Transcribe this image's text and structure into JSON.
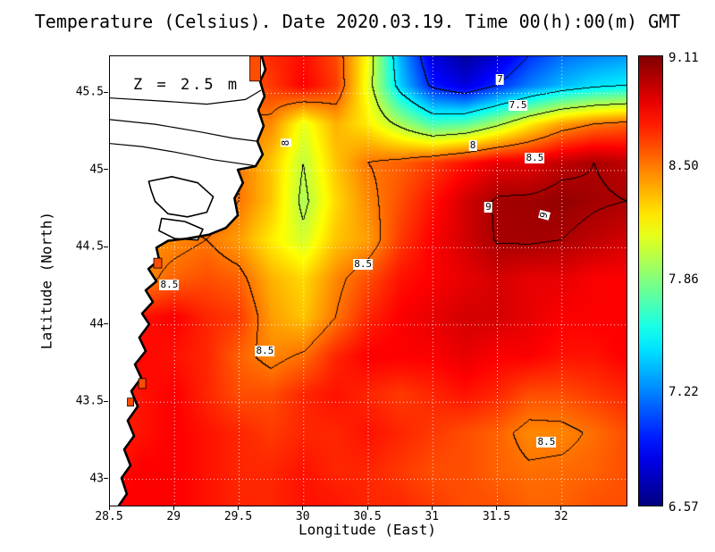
{
  "title": "Temperature (Celsius). Date 2020.03.19. Time 00(h):00(m) GMT",
  "annotation": "Z = 2.5 m",
  "axes": {
    "x_label": "Longitude (East)",
    "y_label": "Latitude (North)",
    "x_ticks": [
      {
        "value": 28.5,
        "label": "28.5"
      },
      {
        "value": 29,
        "label": "29"
      },
      {
        "value": 29.5,
        "label": "29.5"
      },
      {
        "value": 30,
        "label": "30"
      },
      {
        "value": 30.5,
        "label": "30.5"
      },
      {
        "value": 31,
        "label": "31"
      },
      {
        "value": 31.5,
        "label": "31.5"
      },
      {
        "value": 32,
        "label": "32"
      }
    ],
    "y_ticks": [
      {
        "value": 43,
        "label": "43"
      },
      {
        "value": 43.5,
        "label": "43.5"
      },
      {
        "value": 44,
        "label": "44"
      },
      {
        "value": 44.5,
        "label": "44.5"
      },
      {
        "value": 45,
        "label": "45"
      },
      {
        "value": 45.5,
        "label": "45.5"
      }
    ]
  },
  "colorbar": {
    "tick_labels": [
      "9.11",
      "8.50",
      "7.86",
      "7.22",
      "6.57"
    ],
    "tick_values": [
      9.11,
      8.5,
      7.86,
      7.22,
      6.57
    ],
    "min": 6.57,
    "max": 9.11
  },
  "colors": {
    "background": "#ffffff",
    "frame": "#000000",
    "land_fill": "#ffffff",
    "grid_line": "#ffffff",
    "inlet_fill": "#ff4d00"
  },
  "contour_labels": [
    {
      "text": "7",
      "lon": 31.52,
      "lat": 45.59,
      "rot": 0
    },
    {
      "text": "7.5",
      "lon": 31.66,
      "lat": 45.42,
      "rot": 0
    },
    {
      "text": "8",
      "lon": 29.86,
      "lat": 45.18,
      "rot": -90
    },
    {
      "text": "8",
      "lon": 31.31,
      "lat": 45.16,
      "rot": 0
    },
    {
      "text": "8.5",
      "lon": 31.79,
      "lat": 45.08,
      "rot": 0
    },
    {
      "text": "9",
      "lon": 31.43,
      "lat": 44.76,
      "rot": 0
    },
    {
      "text": "9",
      "lon": 31.86,
      "lat": 44.71,
      "rot": -75
    },
    {
      "text": "8.5",
      "lon": 28.96,
      "lat": 44.26,
      "rot": 0
    },
    {
      "text": "8.5",
      "lon": 30.46,
      "lat": 44.39,
      "rot": 0
    },
    {
      "text": "8.5",
      "lon": 29.7,
      "lat": 43.83,
      "rot": 0
    },
    {
      "text": "8.5",
      "lon": 31.88,
      "lat": 43.24,
      "rot": 0
    }
  ],
  "chart_data": {
    "type": "heatmap",
    "title": "Temperature (Celsius). Date 2020.03.19. Time 00(h):00(m) GMT",
    "variable": "Temperature",
    "units": "Celsius",
    "date": "2020.03.19",
    "time": "00(h):00(m) GMT",
    "depth": "2.5 m",
    "xlabel": "Longitude (East)",
    "ylabel": "Latitude (North)",
    "colormap": "jet",
    "vmin": 6.57,
    "vmax": 9.11,
    "contour_levels": [
      7,
      7.5,
      8,
      8.5,
      9
    ],
    "lon_range": [
      28.5,
      32.5
    ],
    "lat_range": [
      42.83,
      45.74
    ],
    "grid": {
      "lon": [
        28.5,
        28.75,
        29.0,
        29.25,
        29.5,
        29.75,
        30.0,
        30.25,
        30.5,
        30.75,
        31.0,
        31.25,
        31.5,
        31.75,
        32.0,
        32.25,
        32.5
      ],
      "lat": [
        45.8,
        45.55,
        45.3,
        45.05,
        44.8,
        44.55,
        44.3,
        44.05,
        43.8,
        43.55,
        43.3,
        43.05,
        42.8
      ],
      "values": [
        [
          8.5,
          8.5,
          8.5,
          8.5,
          8.6,
          8.7,
          8.75,
          8.6,
          8.15,
          7.3,
          6.75,
          6.6,
          6.7,
          6.95,
          7.1,
          7.15,
          7.2
        ],
        [
          8.5,
          8.5,
          8.5,
          8.5,
          8.55,
          8.65,
          8.8,
          8.65,
          8.1,
          7.4,
          6.95,
          6.8,
          7.0,
          7.2,
          7.35,
          7.45,
          7.5
        ],
        [
          8.5,
          8.5,
          8.5,
          8.5,
          8.5,
          8.45,
          8.1,
          8.35,
          8.2,
          7.95,
          7.7,
          7.75,
          7.95,
          8.2,
          8.4,
          8.5,
          8.55
        ],
        [
          8.5,
          8.5,
          8.5,
          8.55,
          8.5,
          8.3,
          8.0,
          8.3,
          8.5,
          8.55,
          8.65,
          8.75,
          8.85,
          8.85,
          8.95,
          9.0,
          8.95
        ],
        [
          8.5,
          8.55,
          8.6,
          8.6,
          8.5,
          8.3,
          7.95,
          8.25,
          8.45,
          8.6,
          8.75,
          8.9,
          9.02,
          9.03,
          9.06,
          9.02,
          9.0
        ],
        [
          8.4,
          8.42,
          8.45,
          8.5,
          8.4,
          8.2,
          8.05,
          8.3,
          8.4,
          8.65,
          8.8,
          8.9,
          9.01,
          9.02,
          9.0,
          8.95,
          8.9
        ],
        [
          8.45,
          8.45,
          8.55,
          8.6,
          8.55,
          8.35,
          8.25,
          8.45,
          8.6,
          8.75,
          8.8,
          8.85,
          8.9,
          8.85,
          8.85,
          8.8,
          8.8
        ],
        [
          8.7,
          8.75,
          8.8,
          8.7,
          8.65,
          8.4,
          8.3,
          8.5,
          8.7,
          8.8,
          8.85,
          8.9,
          8.9,
          8.85,
          8.8,
          8.8,
          8.8
        ],
        [
          8.75,
          8.78,
          8.75,
          8.7,
          8.55,
          8.45,
          8.52,
          8.7,
          8.8,
          8.8,
          8.8,
          8.85,
          8.8,
          8.8,
          8.75,
          8.75,
          8.8
        ],
        [
          8.7,
          8.75,
          8.8,
          8.7,
          8.6,
          8.6,
          8.7,
          8.75,
          8.7,
          8.65,
          8.7,
          8.75,
          8.7,
          8.6,
          8.6,
          8.65,
          8.7
        ],
        [
          8.7,
          8.75,
          8.8,
          8.75,
          8.7,
          8.65,
          8.7,
          8.7,
          8.75,
          8.7,
          8.65,
          8.6,
          8.55,
          8.45,
          8.46,
          8.52,
          8.6
        ],
        [
          8.75,
          8.8,
          8.8,
          8.75,
          8.7,
          8.7,
          8.75,
          8.7,
          8.7,
          8.65,
          8.6,
          8.6,
          8.55,
          8.52,
          8.53,
          8.55,
          8.6
        ],
        [
          8.8,
          8.8,
          8.8,
          8.75,
          8.7,
          8.7,
          8.75,
          8.75,
          8.7,
          8.7,
          8.65,
          8.6,
          8.6,
          8.55,
          8.55,
          8.6,
          8.6
        ]
      ]
    },
    "coastline": [
      [
        28.5,
        45.74
      ],
      [
        29.676,
        45.74
      ],
      [
        29.704,
        45.653
      ],
      [
        29.663,
        45.578
      ],
      [
        29.697,
        45.48
      ],
      [
        29.649,
        45.393
      ],
      [
        29.69,
        45.289
      ],
      [
        29.642,
        45.19
      ],
      [
        29.683,
        45.104
      ],
      [
        29.628,
        45.028
      ],
      [
        29.49,
        45.005
      ],
      [
        29.53,
        44.92
      ],
      [
        29.465,
        44.82
      ],
      [
        29.49,
        44.71
      ],
      [
        29.4,
        44.63
      ],
      [
        29.27,
        44.585
      ],
      [
        29.1,
        44.56
      ],
      [
        28.95,
        44.545
      ],
      [
        28.86,
        44.5
      ],
      [
        28.881,
        44.421
      ],
      [
        28.798,
        44.363
      ],
      [
        28.86,
        44.282
      ],
      [
        28.777,
        44.224
      ],
      [
        28.832,
        44.149
      ],
      [
        28.749,
        44.074
      ],
      [
        28.804,
        44.004
      ],
      [
        28.728,
        43.918
      ],
      [
        28.777,
        43.831
      ],
      [
        28.694,
        43.744
      ],
      [
        28.742,
        43.657
      ],
      [
        28.666,
        43.571
      ],
      [
        28.715,
        43.472
      ],
      [
        28.638,
        43.38
      ],
      [
        28.687,
        43.281
      ],
      [
        28.611,
        43.194
      ],
      [
        28.659,
        43.09
      ],
      [
        28.59,
        43.009
      ],
      [
        28.631,
        42.905
      ],
      [
        28.569,
        42.83
      ],
      [
        28.5,
        42.83
      ]
    ],
    "lakes": [
      [
        [
          28.8,
          44.93
        ],
        [
          28.98,
          44.96
        ],
        [
          29.18,
          44.92
        ],
        [
          29.3,
          44.83
        ],
        [
          29.25,
          44.73
        ],
        [
          29.1,
          44.7
        ],
        [
          28.95,
          44.72
        ],
        [
          28.85,
          44.8
        ],
        [
          28.82,
          44.87
        ]
      ],
      [
        [
          28.9,
          44.69
        ],
        [
          29.08,
          44.67
        ],
        [
          29.22,
          44.62
        ],
        [
          29.18,
          44.55
        ],
        [
          29.0,
          44.56
        ],
        [
          28.88,
          44.61
        ]
      ]
    ],
    "rivers": [
      [
        [
          28.5,
          45.175
        ],
        [
          28.75,
          45.155
        ],
        [
          29.0,
          45.12
        ],
        [
          29.3,
          45.07
        ],
        [
          29.63,
          45.03
        ]
      ],
      [
        [
          28.5,
          45.33
        ],
        [
          28.85,
          45.3
        ],
        [
          29.2,
          45.25
        ],
        [
          29.45,
          45.21
        ],
        [
          29.64,
          45.19
        ]
      ],
      [
        [
          28.5,
          45.47
        ],
        [
          28.9,
          45.45
        ],
        [
          29.25,
          45.43
        ],
        [
          29.55,
          45.46
        ],
        [
          29.67,
          45.52
        ]
      ]
    ],
    "inlets": [
      {
        "lon": 29.625,
        "lat": 45.66,
        "w": 12,
        "h": 28
      },
      {
        "lon": 28.87,
        "lat": 44.4,
        "w": 9,
        "h": 11
      },
      {
        "lon": 28.75,
        "lat": 43.62,
        "w": 8,
        "h": 11
      },
      {
        "lon": 28.66,
        "lat": 43.5,
        "w": 7,
        "h": 9
      }
    ]
  }
}
